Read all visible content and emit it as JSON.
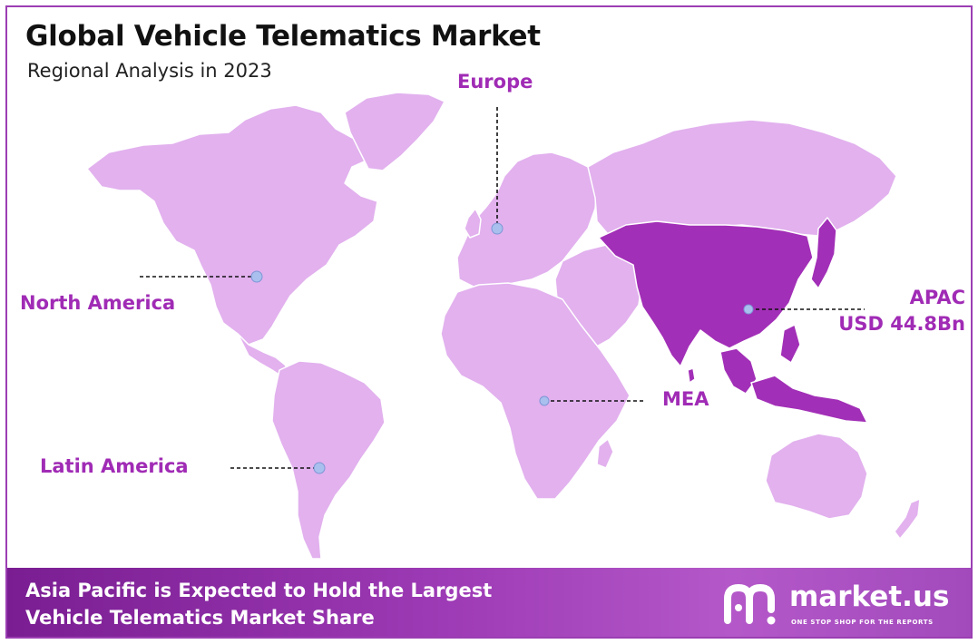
{
  "header": {
    "title": "Global Vehicle Telematics Market",
    "subtitle": "Regional Analysis in 2023"
  },
  "map": {
    "regions": [
      {
        "id": "north-america",
        "label": "North America",
        "highlighted": false
      },
      {
        "id": "europe",
        "label": "Europe",
        "highlighted": false
      },
      {
        "id": "apac",
        "label": "APAC",
        "value": "USD 44.8Bn",
        "highlighted": true
      },
      {
        "id": "mea",
        "label": "MEA",
        "highlighted": false
      },
      {
        "id": "latin-america",
        "label": "Latin America",
        "highlighted": false
      }
    ],
    "colors": {
      "land": "#e2b1ee",
      "highlight": "#a22fb7",
      "label": "#a02bb5",
      "marker": "#a9bfee",
      "frame": "#9b3fb3"
    }
  },
  "footer": {
    "line1": "Asia Pacific is Expected to Hold the Largest",
    "line2": "Vehicle Telematics Market Share",
    "brand_name": "market.us",
    "brand_tagline": "ONE STOP SHOP FOR THE REPORTS",
    "brand_icon": "market-us-logo-icon"
  }
}
